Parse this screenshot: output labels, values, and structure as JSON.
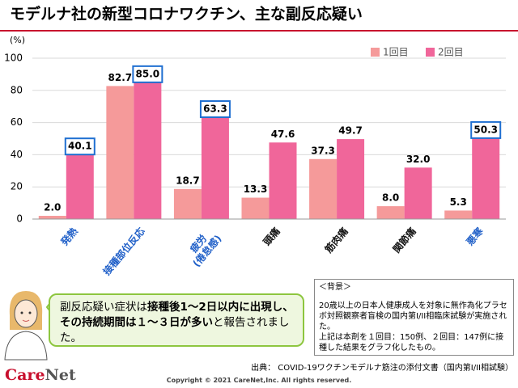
{
  "chart_data": {
    "type": "bar",
    "title": "モデルナ社の新型コロナワクチン、主な副反応疑い",
    "y_label": "(%)",
    "categories": [
      "発熱",
      "接種部位反応",
      "疲労\n(倦怠感)",
      "頭痛",
      "筋肉痛",
      "関節痛",
      "悪寒"
    ],
    "highlight_categories": [
      0,
      1,
      2,
      6
    ],
    "series": [
      {
        "name": "1回目",
        "color": "#f59a9a",
        "values": [
          2.0,
          82.7,
          18.7,
          13.3,
          37.3,
          8.0,
          5.3
        ],
        "value_labels": [
          "2.0",
          "82.7",
          "18.7",
          "13.3",
          "37.3",
          "8.0",
          "5.3"
        ]
      },
      {
        "name": "2回目",
        "color": "#f0669a",
        "values": [
          40.1,
          85.0,
          63.3,
          47.6,
          49.7,
          32.0,
          50.3
        ],
        "value_labels": [
          "40.1",
          "85.0",
          "63.3",
          "47.6",
          "49.7",
          "32.0",
          "50.3"
        ],
        "boxed": [
          0,
          1,
          2,
          6
        ]
      }
    ],
    "ylim": [
      0,
      100
    ],
    "yticks": [
      0,
      20,
      40,
      60,
      80,
      100
    ],
    "grid": true,
    "legend": "top-right"
  },
  "callout": [
    {
      "text": "副反応疑い症状は",
      "bold": false
    },
    {
      "text": "接種後1～2日以内に出現し、その持続期間は１～３日が多い",
      "bold": true
    },
    {
      "text": "と報告されました。",
      "bold": false
    }
  ],
  "background": {
    "heading": "＜背景＞",
    "lines": [
      "20歳以上の日本人健康成人を対象に無作為化プラセボ対照観察者盲検の国内第I/II相臨床試験が実施された。",
      "上記は本剤を１回目：150例、２回目：147例に接種した結果をグラフ化したもの。"
    ]
  },
  "source": "出典： COVID-19ワクチンモデルナ筋注の添付文書（国内第I/II相試験）",
  "logo": {
    "part1": "Care",
    "part2": "Net"
  },
  "copyright": "Copyright © 2021 CareNet,Inc. All rights reserved."
}
